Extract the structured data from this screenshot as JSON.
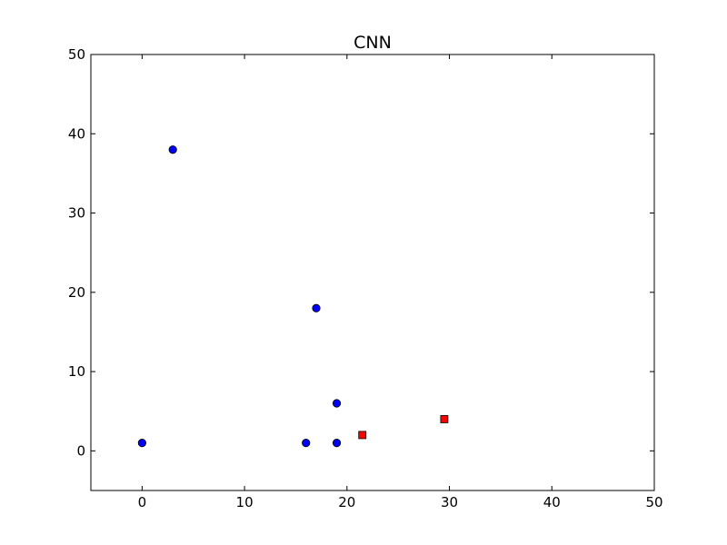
{
  "chart_data": {
    "type": "scatter",
    "title": "CNN",
    "xlabel": "",
    "ylabel": "",
    "xlim": [
      -5,
      50
    ],
    "ylim": [
      -5,
      50
    ],
    "xticks": [
      0,
      10,
      20,
      30,
      40,
      50
    ],
    "yticks": [
      0,
      10,
      20,
      30,
      40,
      50
    ],
    "grid": false,
    "legend": "none",
    "series": [
      {
        "marker": "circle",
        "color": "#0000ff",
        "points": [
          {
            "x": 3,
            "y": 38
          },
          {
            "x": 17,
            "y": 18
          },
          {
            "x": 19,
            "y": 6
          },
          {
            "x": 0,
            "y": 1
          },
          {
            "x": 16,
            "y": 1
          },
          {
            "x": 19,
            "y": 1
          }
        ]
      },
      {
        "marker": "square",
        "color": "#ff0000",
        "points": [
          {
            "x": 21.5,
            "y": 2
          },
          {
            "x": 29.5,
            "y": 4
          }
        ]
      }
    ]
  }
}
